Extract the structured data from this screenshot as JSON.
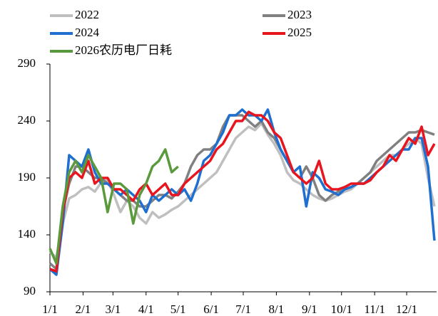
{
  "chart_data": {
    "type": "line",
    "x": [
      0,
      6,
      12,
      18,
      24,
      30,
      36,
      42,
      48,
      54,
      60,
      66,
      72,
      78,
      84,
      90,
      96,
      102,
      108,
      114,
      120,
      126,
      132,
      138,
      144,
      150,
      156,
      162,
      168,
      174,
      180,
      186,
      192,
      198,
      204,
      210,
      216,
      222,
      228,
      234,
      240,
      246,
      252,
      258,
      264,
      270,
      276,
      282,
      288,
      294,
      300,
      306,
      312,
      318,
      324,
      330,
      336,
      342,
      348,
      354,
      360
    ],
    "xlim": [
      0,
      362
    ],
    "xticks": [
      {
        "value": 0,
        "label": "1/1"
      },
      {
        "value": 31,
        "label": "2/1"
      },
      {
        "value": 59,
        "label": "3/1"
      },
      {
        "value": 90,
        "label": "4/1"
      },
      {
        "value": 120,
        "label": "5/1"
      },
      {
        "value": 151,
        "label": "6/1"
      },
      {
        "value": 181,
        "label": "7/1"
      },
      {
        "value": 212,
        "label": "8/1"
      },
      {
        "value": 243,
        "label": "9/1"
      },
      {
        "value": 273,
        "label": "10/1"
      },
      {
        "value": 304,
        "label": "11/1"
      },
      {
        "value": 334,
        "label": "12/1"
      }
    ],
    "ylim": [
      90,
      290
    ],
    "yticks": [
      90,
      140,
      190,
      240,
      290
    ],
    "grid": false,
    "series": [
      {
        "name": "2022",
        "color": "#bfbfbf",
        "values": [
          125,
          120,
          150,
          172,
          175,
          180,
          182,
          178,
          186,
          188,
          175,
          160,
          170,
          165,
          155,
          150,
          160,
          155,
          158,
          162,
          165,
          170,
          175,
          180,
          185,
          190,
          195,
          205,
          215,
          225,
          230,
          235,
          232,
          238,
          228,
          220,
          210,
          195,
          188,
          185,
          180,
          175,
          172,
          170,
          172,
          175,
          178,
          180,
          185,
          190,
          195,
          200,
          205,
          210,
          210,
          215,
          220,
          225,
          220,
          190,
          165
        ]
      },
      {
        "name": "2023",
        "color": "#808080",
        "values": [
          115,
          110,
          160,
          185,
          200,
          200,
          195,
          190,
          190,
          185,
          180,
          175,
          170,
          170,
          165,
          165,
          170,
          175,
          175,
          172,
          178,
          185,
          200,
          210,
          215,
          215,
          220,
          235,
          245,
          245,
          245,
          240,
          235,
          240,
          230,
          225,
          215,
          205,
          195,
          190,
          200,
          190,
          175,
          170,
          175,
          178,
          180,
          182,
          185,
          190,
          195,
          205,
          210,
          215,
          220,
          225,
          230,
          230,
          232,
          230,
          228
        ]
      },
      {
        "name": "2024",
        "color": "#1f6fd1",
        "values": [
          110,
          105,
          150,
          210,
          205,
          200,
          215,
          195,
          185,
          185,
          180,
          175,
          180,
          175,
          170,
          160,
          175,
          170,
          175,
          180,
          175,
          180,
          170,
          185,
          205,
          210,
          220,
          230,
          245,
          245,
          250,
          245,
          245,
          240,
          250,
          230,
          215,
          205,
          195,
          200,
          165,
          195,
          190,
          180,
          178,
          175,
          180,
          182,
          185,
          185,
          190,
          195,
          200,
          205,
          210,
          215,
          215,
          225,
          225,
          200,
          135
        ]
      },
      {
        "name": "2025",
        "color": "#e8141e",
        "values": [
          110,
          108,
          160,
          190,
          195,
          190,
          205,
          185,
          190,
          190,
          180,
          180,
          175,
          170,
          180,
          185,
          175,
          180,
          185,
          175,
          175,
          185,
          190,
          195,
          200,
          205,
          215,
          220,
          230,
          240,
          240,
          248,
          245,
          245,
          240,
          230,
          225,
          210,
          195,
          190,
          185,
          190,
          205,
          185,
          180,
          180,
          182,
          185,
          185,
          185,
          188,
          195,
          200,
          210,
          205,
          215,
          225,
          220,
          235,
          210,
          220
        ]
      },
      {
        "name": "2026农历电厂日耗",
        "color": "#5b9a3c",
        "values": [
          128,
          115,
          165,
          195,
          205,
          195,
          210,
          200,
          190,
          160,
          185,
          185,
          180,
          150,
          175,
          185,
          200,
          205,
          215,
          195,
          200,
          null,
          null,
          null,
          null,
          null,
          null,
          null,
          null,
          null,
          null,
          null,
          null,
          null,
          null,
          null,
          null,
          null,
          null,
          null,
          null,
          null,
          null,
          null,
          null,
          null,
          null,
          null,
          null,
          null,
          null,
          null,
          null,
          null,
          null,
          null,
          null,
          null,
          null,
          null,
          null
        ]
      }
    ]
  }
}
